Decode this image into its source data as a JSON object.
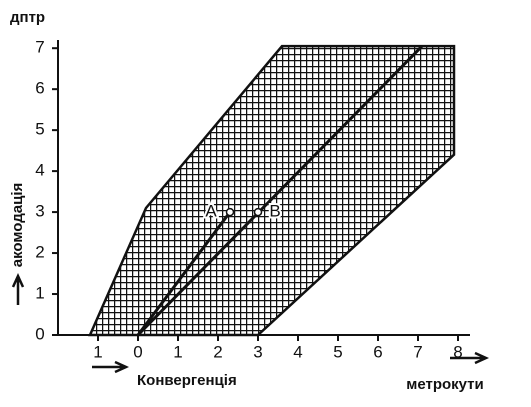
{
  "chart_data": {
    "type": "region-diagram",
    "y_unit": "дптр",
    "ylabel": "акомодація",
    "xlabel": "Конвергенція",
    "x_unit": "метрокути",
    "xlim": [
      -2,
      8.3
    ],
    "ylim": [
      0,
      7.2
    ],
    "xticks": [
      {
        "value": -1,
        "label": "1"
      },
      0,
      1,
      2,
      3,
      4,
      5,
      6,
      7,
      8
    ],
    "yticks": [
      0,
      1,
      2,
      3,
      4,
      5,
      6,
      7
    ],
    "region": {
      "x": [
        -1.2,
        0.2,
        3.6,
        7.9,
        7.9,
        3.0
      ],
      "y": [
        0,
        3.1,
        7.05,
        7.05,
        4.4,
        0
      ]
    },
    "color": "#111111",
    "series": [
      {
        "x": [
          0,
          7.1
        ],
        "y": [
          0,
          7.05
        ]
      },
      {
        "x": [
          0,
          2.3
        ],
        "y": [
          0,
          3.0
        ]
      }
    ],
    "points": [
      {
        "label": "A",
        "x": 2.3,
        "y": 3.0
      },
      {
        "label": "B",
        "x": 3.0,
        "y": 3.0
      }
    ]
  }
}
